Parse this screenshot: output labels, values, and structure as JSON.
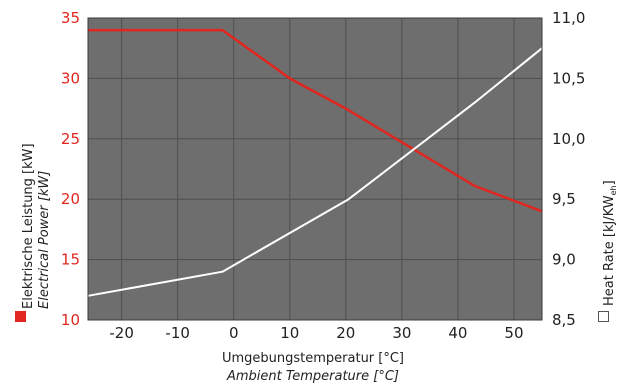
{
  "chart_data": {
    "type": "line",
    "title": "",
    "xlabel": "Umgebungstemperatur [°C]",
    "xlabel_en": "Ambient Temperature [°C]",
    "ylabel": "Elektrische Leistung [kW]",
    "ylabel_en": "Electrical Power [kW]",
    "y2label": "Heat Rate [kJ/KW",
    "y2label_sub": "eh",
    "y2label_end": "]",
    "xlim": [
      -26,
      55
    ],
    "ylim": [
      10,
      35
    ],
    "y2lim": [
      8.5,
      11.0
    ],
    "x_ticks": [
      "-20",
      "-10",
      "0",
      "10",
      "20",
      "30",
      "40",
      "50"
    ],
    "y_ticks": [
      "10",
      "15",
      "20",
      "25",
      "30",
      "35"
    ],
    "y2_ticks": [
      "8,5",
      "9,0",
      "9,5",
      "10,0",
      "10,5",
      "11,0"
    ],
    "grid": true,
    "colors": {
      "plot_background": "#6e6e6e",
      "grid": "#4f4f4f",
      "electrical_power": "#e0261e",
      "heat_rate": "#ffffff"
    },
    "series": [
      {
        "axis": "left",
        "color": "#e0261e",
        "x": [
          -26,
          -2,
          10,
          20,
          43,
          55
        ],
        "y": [
          34,
          34,
          30,
          27.5,
          21.1,
          19
        ]
      },
      {
        "axis": "right",
        "color": "#ffffff",
        "x": [
          -26,
          -2,
          20.5,
          43,
          55
        ],
        "y": [
          8.7,
          8.9,
          9.5,
          10.3,
          10.75
        ]
      }
    ]
  }
}
